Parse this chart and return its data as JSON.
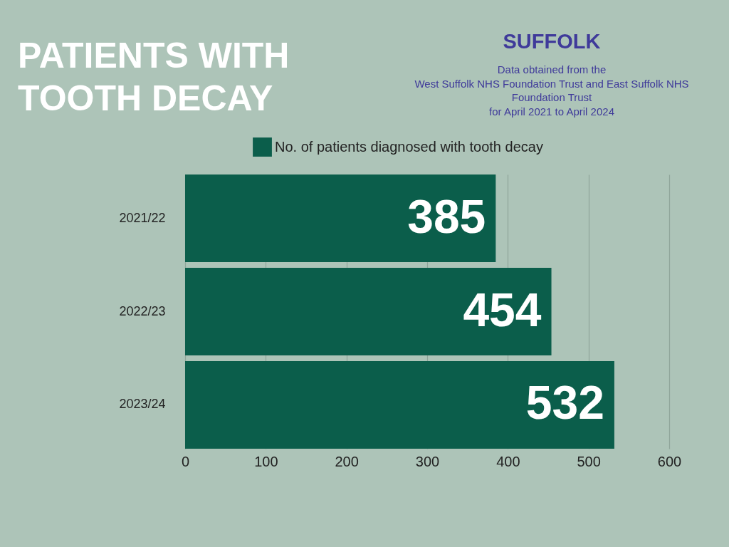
{
  "chart_data": {
    "type": "bar",
    "orientation": "horizontal",
    "title": "PATIENTS WITH TOOTH DECAY",
    "subtitle": "SUFFOLK",
    "annotations": [
      "Data obtained from the",
      "West Suffolk NHS Foundation Trust and East Suffolk NHS",
      "Foundation Trust",
      "for April 2021 to April 2024"
    ],
    "categories": [
      "2021/22",
      "2022/23",
      "2023/24"
    ],
    "series": [
      {
        "name": "No. of patients diagnosed with tooth decay",
        "color": "#0b5e4b",
        "values": [
          385,
          454,
          532
        ]
      }
    ],
    "xlim": [
      0,
      600
    ],
    "xticks": [
      0,
      100,
      200,
      300,
      400,
      500,
      600
    ],
    "grid": "x",
    "legend": "top",
    "data_labels": true
  }
}
